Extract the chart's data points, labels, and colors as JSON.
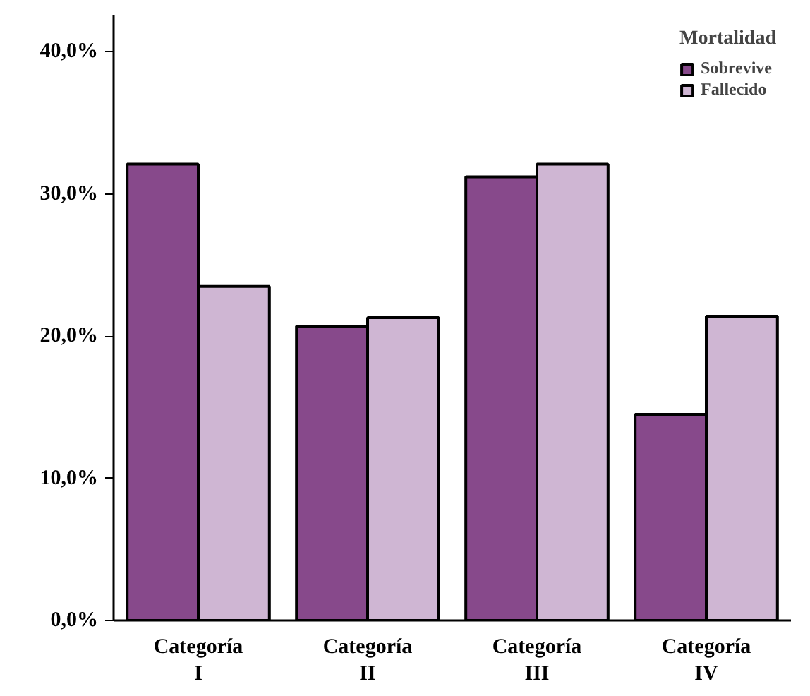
{
  "chart_data": {
    "type": "bar",
    "categories": [
      "Categoría I",
      "Categoría II",
      "Categoría III",
      "Categoría IV"
    ],
    "series": [
      {
        "name": "Sobrevive",
        "color": "#87498b",
        "values": [
          32.1,
          20.7,
          31.2,
          14.5
        ]
      },
      {
        "name": "Fallecido",
        "color": "#cfb6d3",
        "values": [
          23.5,
          21.3,
          32.1,
          21.4
        ]
      }
    ],
    "legend_title": "Mortalidad",
    "legend": "top right",
    "grid": false,
    "ylim": [
      0,
      42.6
    ],
    "yticks": [
      {
        "value": 0,
        "label": "0,0%"
      },
      {
        "value": 10,
        "label": "10,0%"
      },
      {
        "value": 20,
        "label": "20,0%"
      },
      {
        "value": 30,
        "label": "30,0%"
      },
      {
        "value": 40,
        "label": "40,0%"
      }
    ]
  }
}
